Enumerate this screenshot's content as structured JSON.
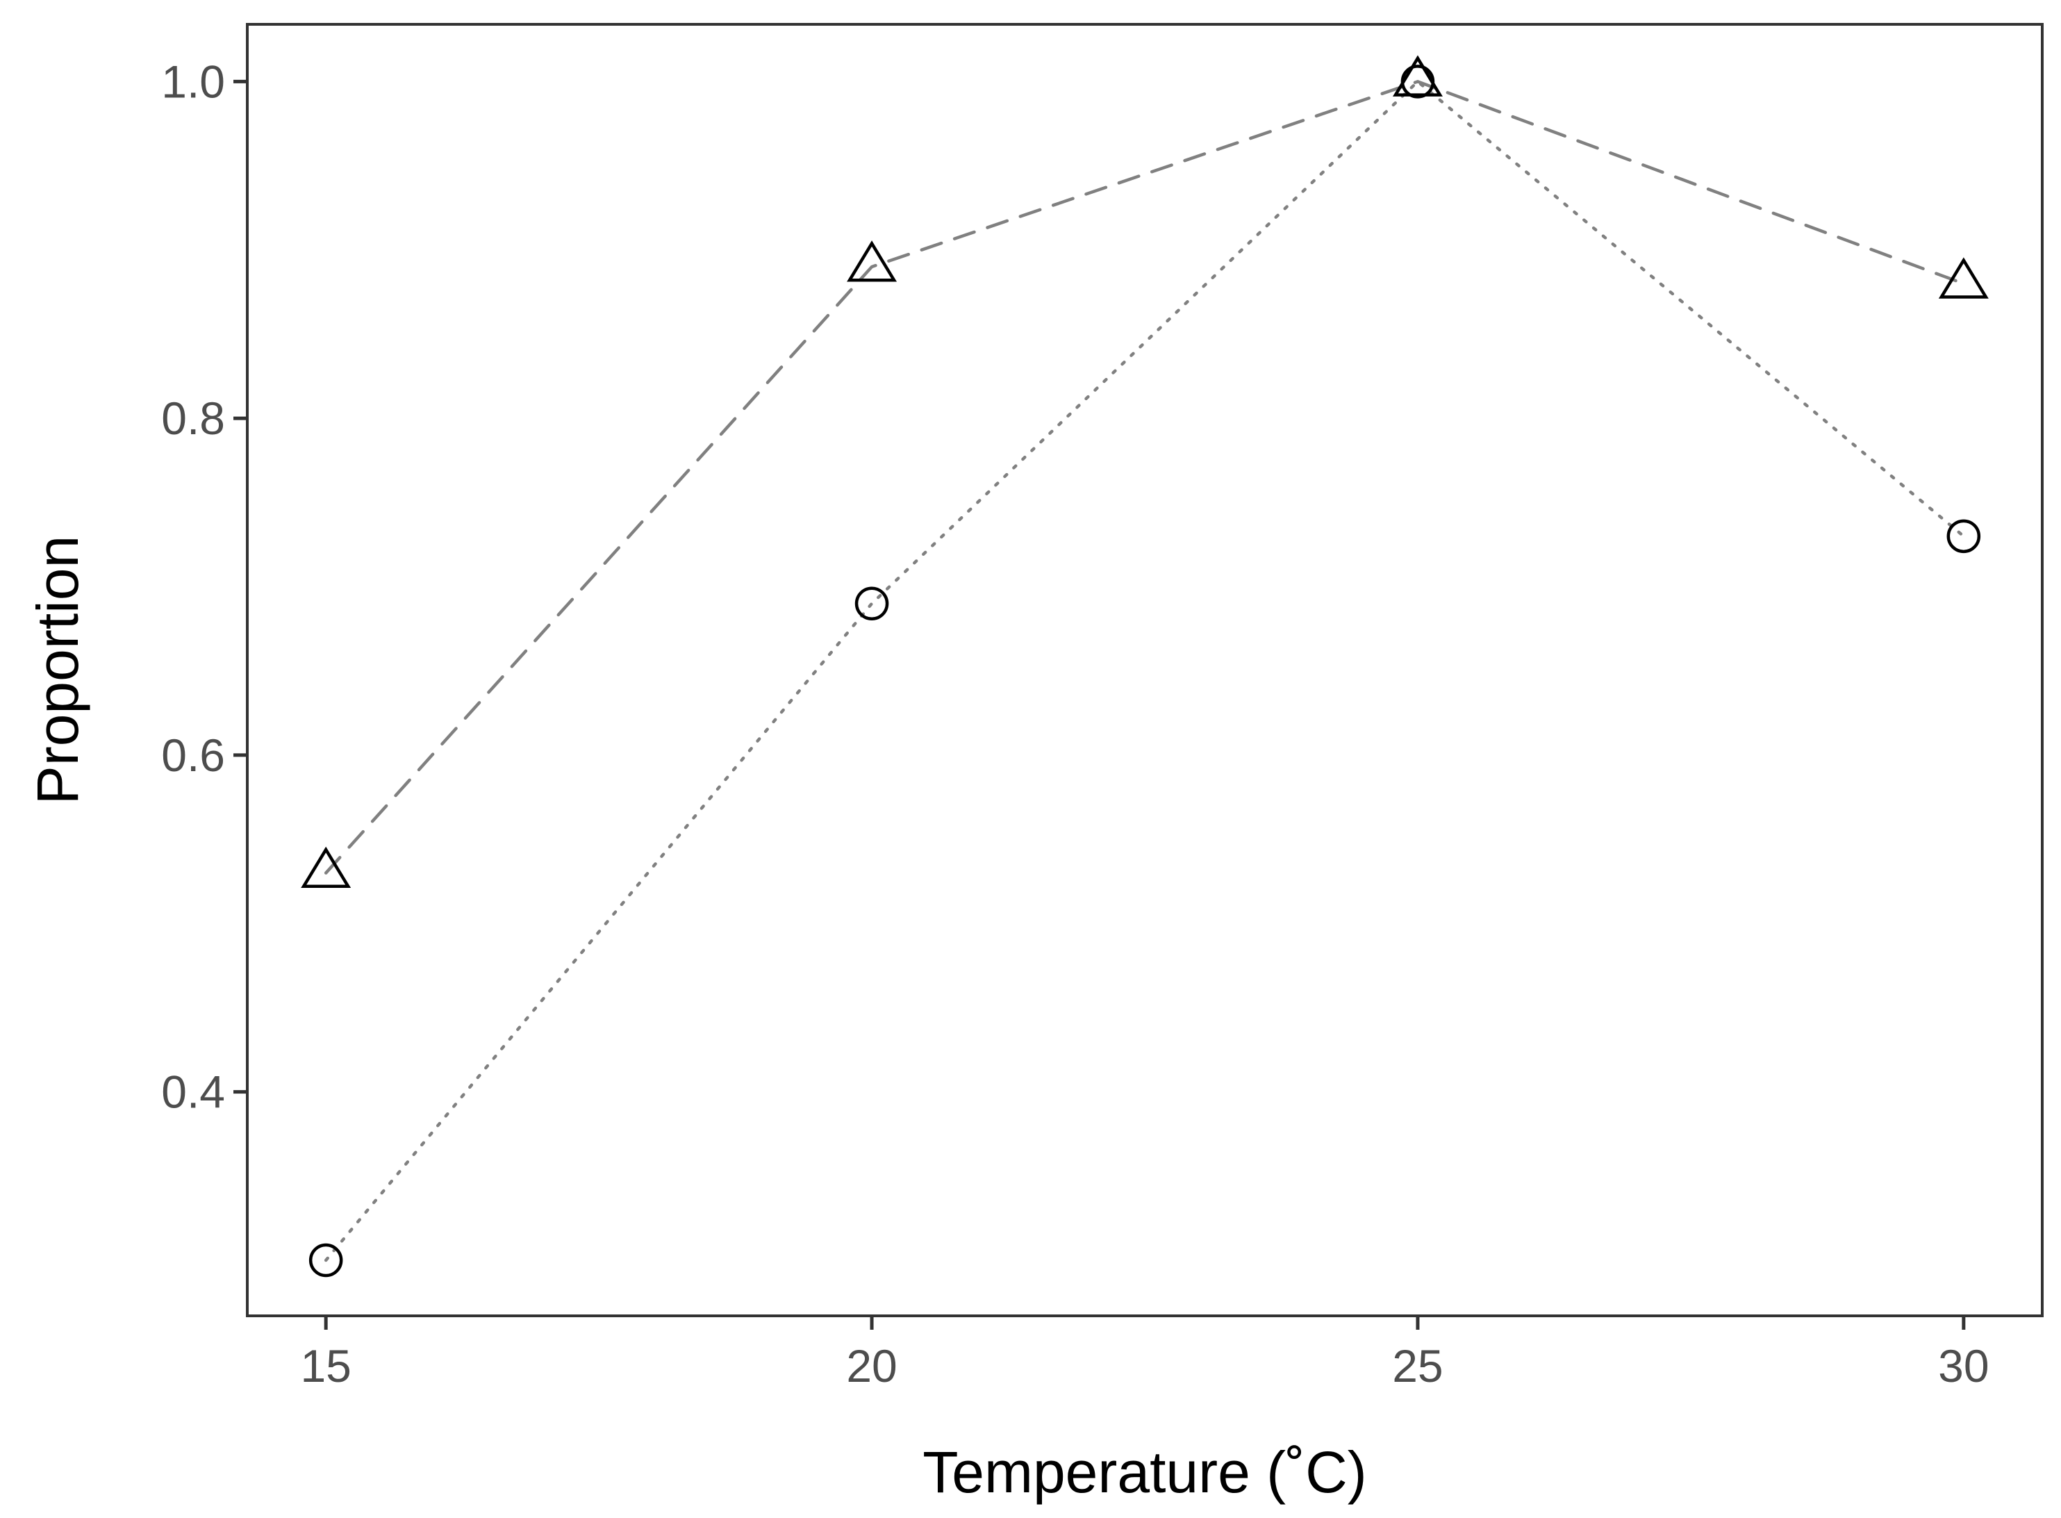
{
  "chart_data": {
    "type": "line",
    "title": "",
    "xlabel": "Temperature (˚C)",
    "ylabel": "Proportion",
    "x": [
      15,
      20,
      25,
      30
    ],
    "xlim": [
      14.28,
      30.72
    ],
    "ylim": [
      0.267,
      1.034
    ],
    "x_ticks": [
      "15",
      "20",
      "25",
      "30"
    ],
    "y_ticks": [
      "0.4",
      "0.6",
      "0.8",
      "1.0"
    ],
    "grid": false,
    "legend": "none",
    "series": [
      {
        "marker": "triangle",
        "line_style": "dashed",
        "values": [
          0.53,
          0.89,
          1.0,
          0.88
        ]
      },
      {
        "marker": "circle",
        "line_style": "dotted",
        "values": [
          0.3,
          0.69,
          1.0,
          0.73
        ]
      }
    ],
    "colors": {
      "line": "#808080",
      "marker": "#000000",
      "frame": "#333333"
    }
  }
}
